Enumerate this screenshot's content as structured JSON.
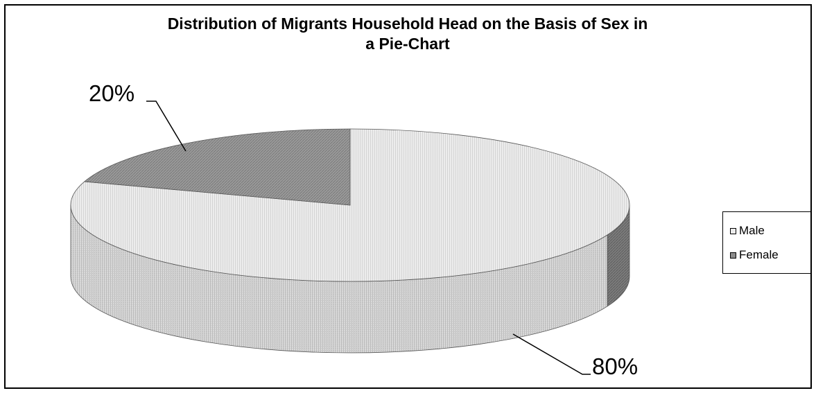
{
  "chart_data": {
    "type": "pie",
    "title": "Distribution of Migrants Household Head on the Basis of Sex in\na Pie-Chart",
    "categories": [
      "Male",
      "Female"
    ],
    "values": [
      80,
      20
    ],
    "data_labels": [
      "80%",
      "20%"
    ],
    "legend_position": "right",
    "style": "3d",
    "colors": {
      "male": "#e8e8e8",
      "female": "#8c8c8c"
    }
  }
}
